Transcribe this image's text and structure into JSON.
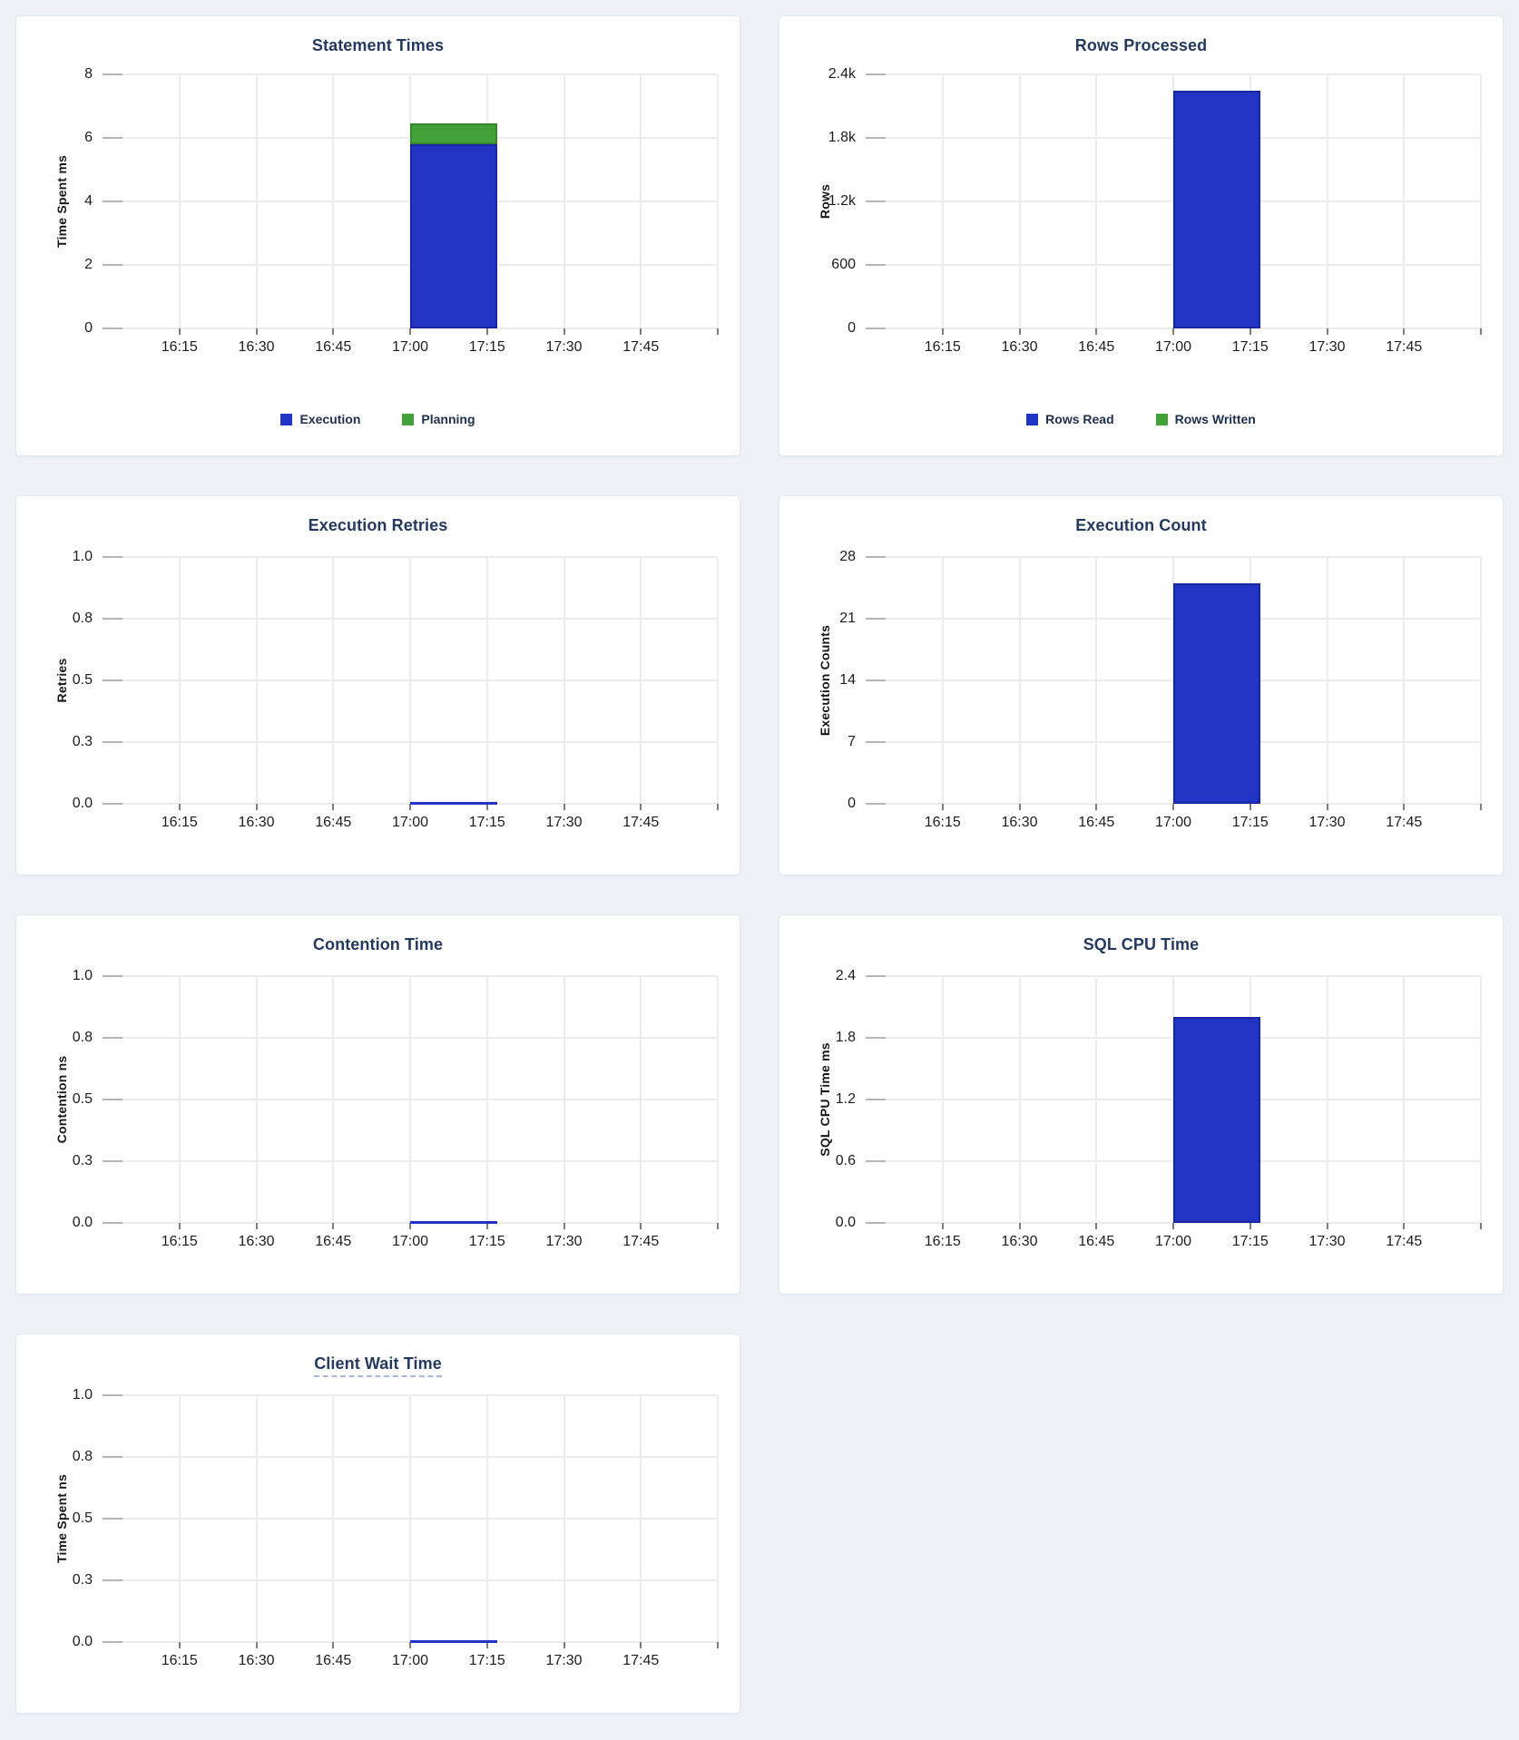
{
  "page": {
    "background_color": "#eef2f7",
    "card_background": "#ffffff"
  },
  "colors": {
    "bar_blue": "#2134c4",
    "bar_blue_border": "#1826a3",
    "bar_green": "#43a139",
    "bar_green_border": "#37862e",
    "zero_line_blue": "#2233c5",
    "chart_title_text": "#24395d",
    "legend_text": "#20304c"
  },
  "chart_data": {
    "type": "bar",
    "x_tick_labels": [
      "16:15",
      "16:30",
      "16:45",
      "17:00",
      "17:15",
      "17:30",
      "17:45"
    ],
    "x_domain": [
      "16:00",
      "18:00"
    ],
    "bar_bucket": {
      "start": "17:00",
      "end": "17:17"
    },
    "grid": true,
    "legend_position": "bottom-center",
    "charts": [
      {
        "title": "Statement Times",
        "ylabel": "Time Spent ms",
        "y_tick_labels": [
          "0",
          "2",
          "4",
          "6",
          "8"
        ],
        "ylim": [
          0,
          8
        ],
        "series": [
          {
            "name": "Execution",
            "value": 5.8,
            "color": "#2134c4",
            "border": "#1826a3"
          },
          {
            "name": "Planning",
            "value": 0.65,
            "color": "#43a139",
            "border": "#37862e"
          }
        ],
        "legend": [
          {
            "label": "Execution",
            "color": "#2134c4"
          },
          {
            "label": "Planning",
            "color": "#43a139"
          }
        ],
        "title_tooltip_underline": false
      },
      {
        "title": "Rows Processed",
        "ylabel": "Rows",
        "y_tick_labels": [
          "0",
          "600",
          "1.2k",
          "1.8k",
          "2.4k"
        ],
        "ylim": [
          0,
          2400
        ],
        "series": [
          {
            "name": "Rows Read",
            "value": 2250,
            "color": "#2134c4",
            "border": "#1826a3"
          },
          {
            "name": "Rows Written",
            "value": 0,
            "color": "#43a139",
            "border": "#37862e"
          }
        ],
        "legend": [
          {
            "label": "Rows Read",
            "color": "#2134c4"
          },
          {
            "label": "Rows Written",
            "color": "#43a139"
          }
        ],
        "title_tooltip_underline": false
      },
      {
        "title": "Execution Retries",
        "ylabel": "Retries",
        "y_tick_labels": [
          "0.0",
          "0.3",
          "0.5",
          "0.8",
          "1.0"
        ],
        "ylim": [
          0,
          1
        ],
        "series": [
          {
            "value": 0,
            "color": "#2233c5",
            "border": "#1826a3"
          }
        ],
        "title_tooltip_underline": false
      },
      {
        "title": "Execution Count",
        "ylabel": "Execution Counts",
        "y_tick_labels": [
          "0",
          "7",
          "14",
          "21",
          "28"
        ],
        "ylim": [
          0,
          28
        ],
        "series": [
          {
            "value": 25,
            "color": "#2134c4",
            "border": "#1826a3"
          }
        ],
        "title_tooltip_underline": false
      },
      {
        "title": "Contention Time",
        "ylabel": "Contention ns",
        "y_tick_labels": [
          "0.0",
          "0.3",
          "0.5",
          "0.8",
          "1.0"
        ],
        "ylim": [
          0,
          1
        ],
        "series": [
          {
            "value": 0,
            "color": "#2233c5",
            "border": "#1826a3"
          }
        ],
        "title_tooltip_underline": false
      },
      {
        "title": "SQL CPU Time",
        "ylabel": "SQL CPU Time ms",
        "y_tick_labels": [
          "0.0",
          "0.6",
          "1.2",
          "1.8",
          "2.4"
        ],
        "ylim": [
          0,
          2.4
        ],
        "series": [
          {
            "value": 2.0,
            "color": "#2134c4",
            "border": "#1826a3"
          }
        ],
        "title_tooltip_underline": false
      },
      {
        "title": "Client Wait Time",
        "ylabel": "Time Spent ns",
        "y_tick_labels": [
          "0.0",
          "0.3",
          "0.5",
          "0.8",
          "1.0"
        ],
        "ylim": [
          0,
          1
        ],
        "series": [
          {
            "value": 0,
            "color": "#2233c5",
            "border": "#1826a3"
          }
        ],
        "title_tooltip_underline": true
      }
    ]
  }
}
